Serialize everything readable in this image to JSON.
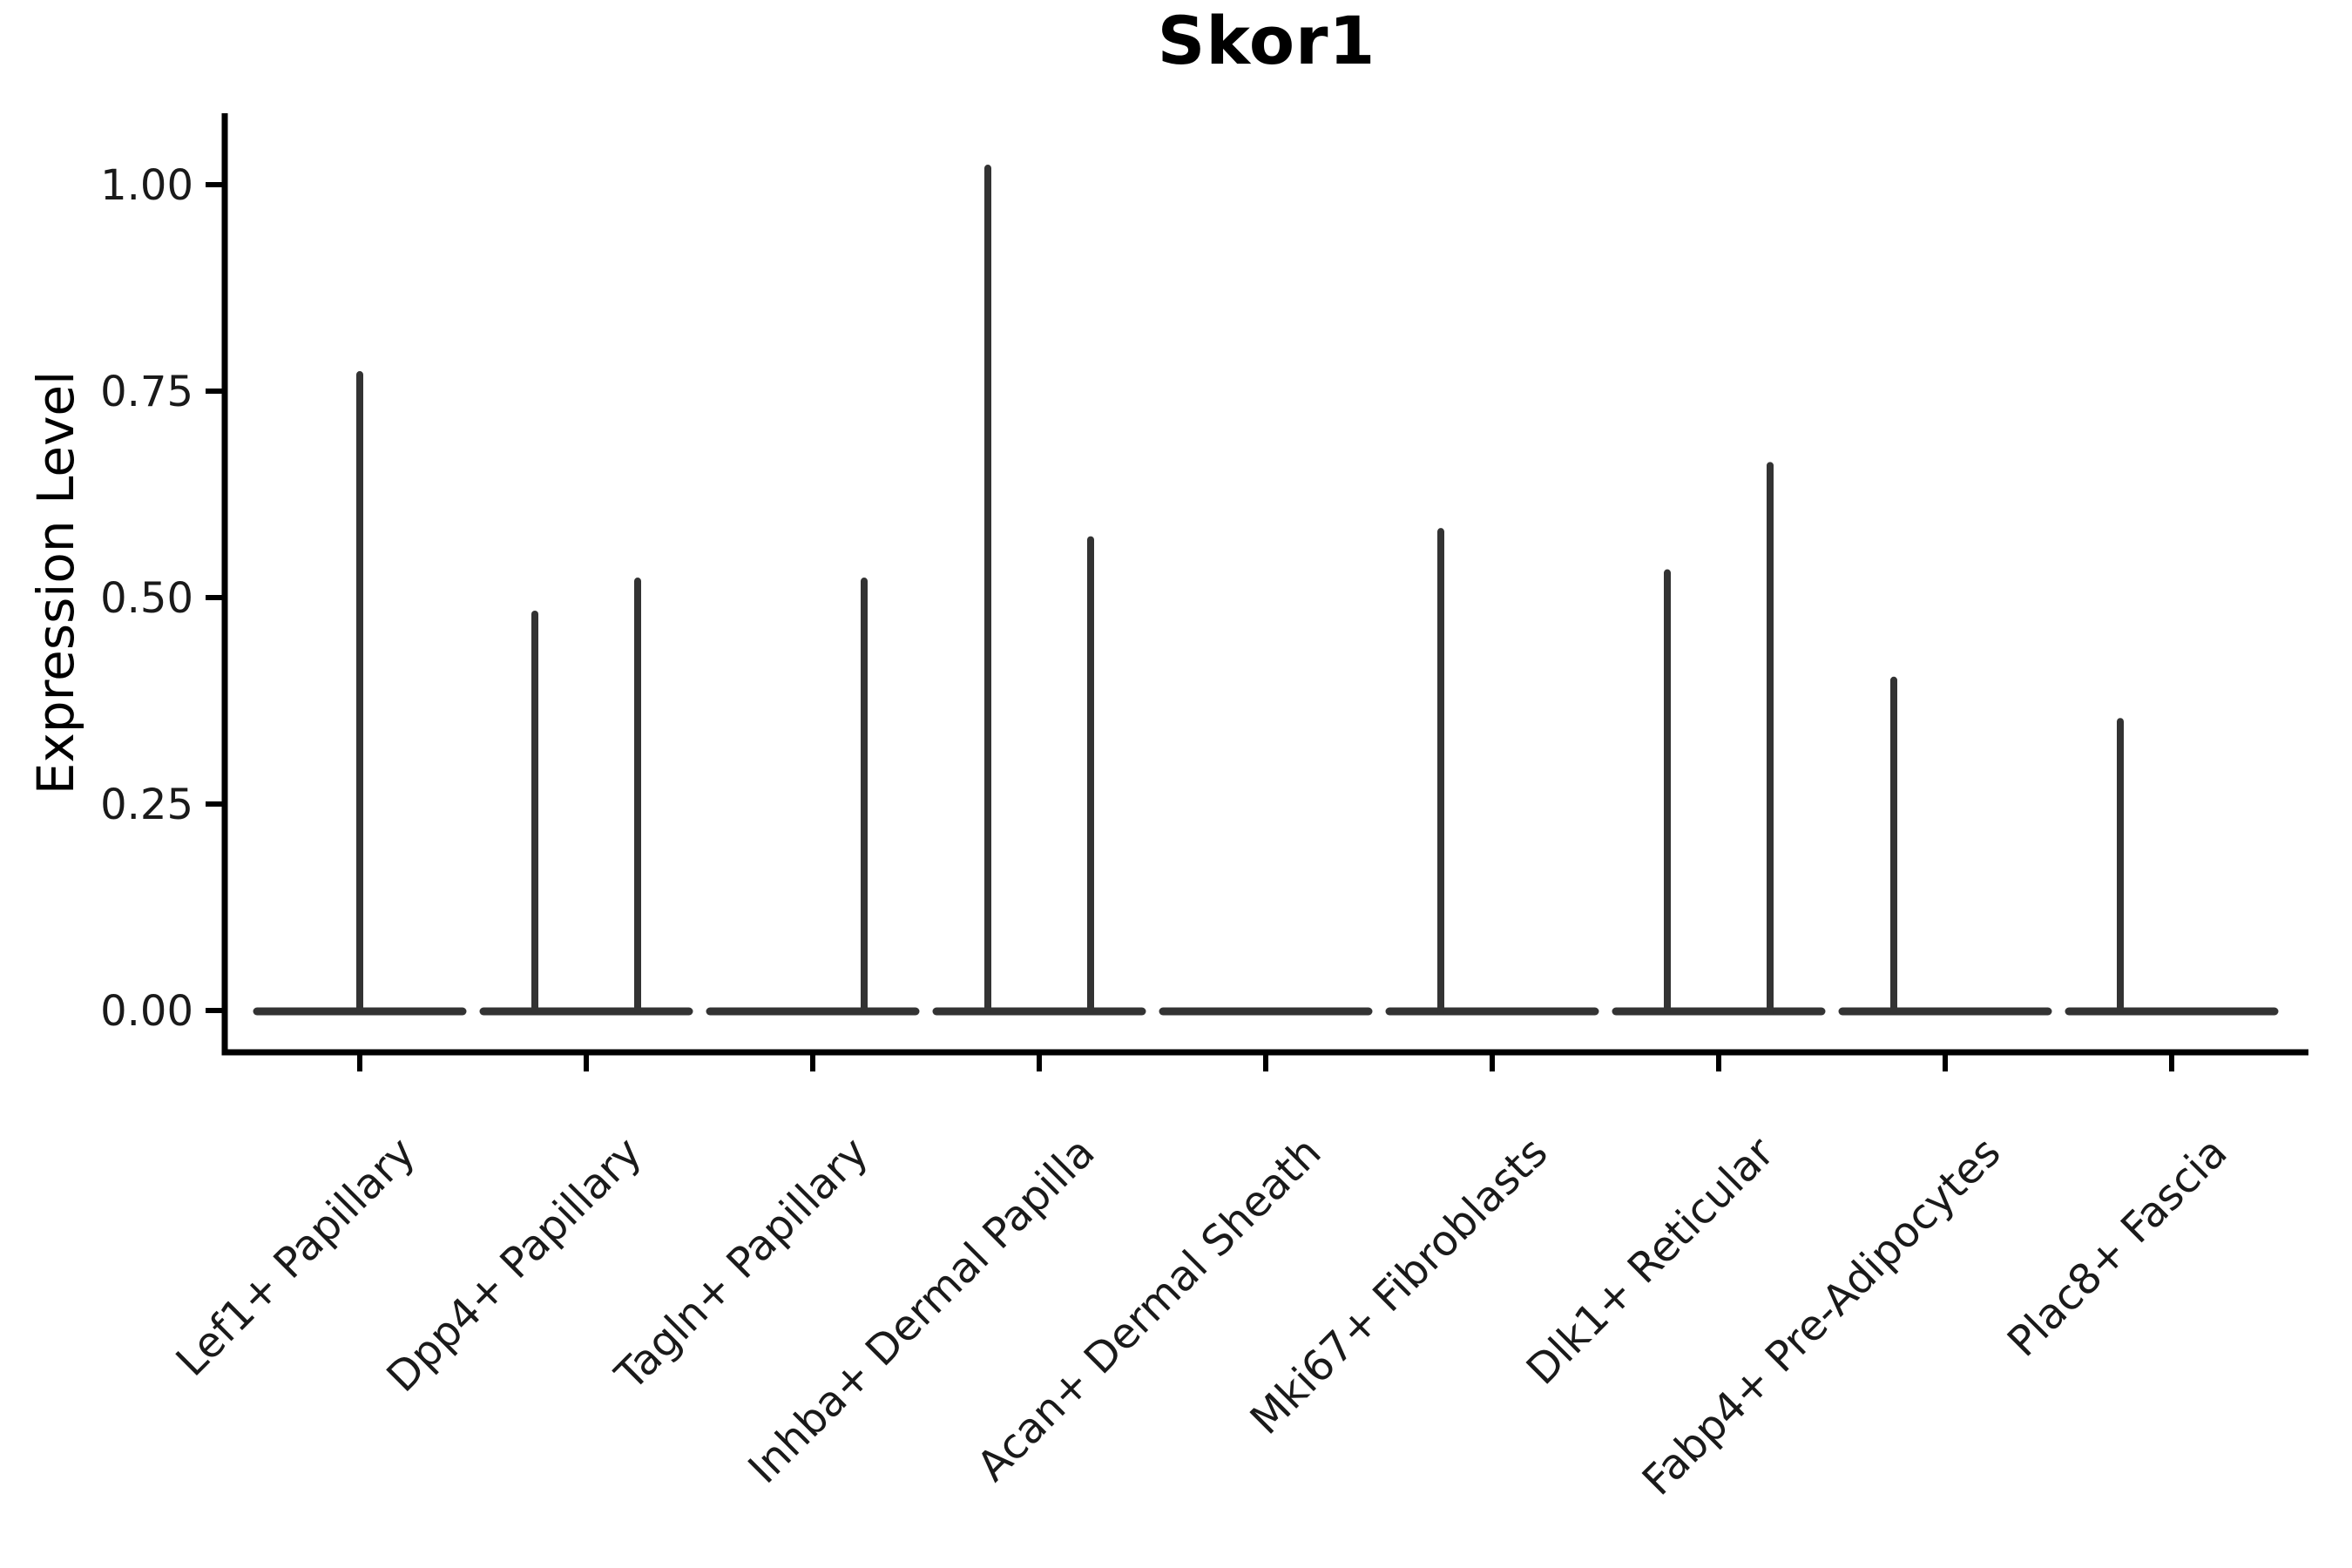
{
  "style": {
    "background": "#ffffff",
    "ink": "#000000",
    "violin_color": "#333333",
    "tick_label_color": "#1a1a1a"
  },
  "chart_data": {
    "type": "violin",
    "title": "Skor1",
    "xlabel": "",
    "ylabel": "Expression Level",
    "ylim": [
      0,
      1.08
    ],
    "yticks": [
      0,
      0.25,
      0.5,
      0.75,
      1.0
    ],
    "ytick_labels": [
      "0.00",
      "0.25",
      "0.50",
      "0.75",
      "1.00"
    ],
    "grid": "off",
    "legend": "none",
    "baseline_note": "every cell type has a dense flat violin at expression 0; thin spikes mark sparse high-expression density",
    "categories": [
      "Lef1+ Papillary",
      "Dpp4+ Papillary",
      "Tagln+ Papillary",
      "Inhba+ Dermal Papilla",
      "Acan+ Dermal Sheath",
      "Mki67+ Fibroblasts",
      "Dlk1+ Reticular",
      "Fabp4+ Pre-Adipocytes",
      "Plac8+ Fascia"
    ],
    "series": [
      {
        "label": "Lef1+ Papillary",
        "spikes": [
          {
            "offset": "center",
            "peak": 0.77
          }
        ]
      },
      {
        "label": "Dpp4+ Papillary",
        "spikes": [
          {
            "offset": "left",
            "peak": 0.48
          },
          {
            "offset": "right",
            "peak": 0.52
          }
        ]
      },
      {
        "label": "Tagln+ Papillary",
        "spikes": [
          {
            "offset": "right",
            "peak": 0.52
          }
        ]
      },
      {
        "label": "Inhba+ Dermal Papilla",
        "spikes": [
          {
            "offset": "left",
            "peak": 1.02
          },
          {
            "offset": "right",
            "peak": 0.57
          }
        ]
      },
      {
        "label": "Acan+ Dermal Sheath",
        "spikes": []
      },
      {
        "label": "Mki67+ Fibroblasts",
        "spikes": [
          {
            "offset": "left",
            "peak": 0.58
          }
        ]
      },
      {
        "label": "Dlk1+ Reticular",
        "spikes": [
          {
            "offset": "left",
            "peak": 0.53
          },
          {
            "offset": "right",
            "peak": 0.66
          }
        ]
      },
      {
        "label": "Fabp4+ Pre-Adipocytes",
        "spikes": [
          {
            "offset": "left",
            "peak": 0.4
          }
        ]
      },
      {
        "label": "Plac8+ Fascia",
        "spikes": [
          {
            "offset": "left",
            "peak": 0.35
          }
        ]
      }
    ]
  }
}
